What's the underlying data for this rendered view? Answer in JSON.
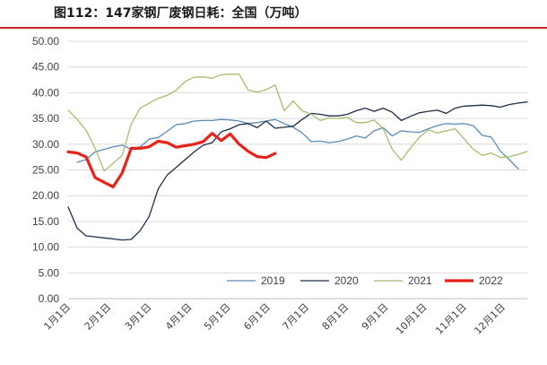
{
  "title": "图112：147家钢厂废钢日耗：全国（万吨）",
  "chart_data": {
    "type": "line",
    "title": "147家钢厂废钢日耗：全国（万吨）",
    "ylim": [
      0,
      50
    ],
    "yticks": [
      "0.00",
      "5.00",
      "10.00",
      "15.00",
      "20.00",
      "25.00",
      "30.00",
      "35.00",
      "40.00",
      "45.00",
      "50.00"
    ],
    "xlim": [
      1,
      52
    ],
    "xticks": [
      {
        "label": "1月1日",
        "week": 1
      },
      {
        "label": "2月1日",
        "week": 5.5
      },
      {
        "label": "3月1日",
        "week": 10
      },
      {
        "label": "4月1日",
        "week": 14.5
      },
      {
        "label": "5月1日",
        "week": 18.8
      },
      {
        "label": "6月1日",
        "week": 23.2
      },
      {
        "label": "7月1日",
        "week": 27.5
      },
      {
        "label": "8月1日",
        "week": 31.9
      },
      {
        "label": "9月1日",
        "week": 36.3
      },
      {
        "label": "10月1日",
        "week": 40.6
      },
      {
        "label": "11月1日",
        "week": 45
      },
      {
        "label": "12月1日",
        "week": 49.3
      }
    ],
    "grid": "horizontal",
    "legend_position": "bottom-right",
    "series": [
      {
        "name": "2019",
        "color": "#5b8bb7",
        "width": 1.3,
        "start_week": 2,
        "values": [
          26.5,
          27.0,
          28.5,
          29.0,
          29.5,
          29.8,
          29.0,
          29.5,
          31.0,
          31.3,
          32.5,
          33.8,
          34.0,
          34.5,
          34.6,
          34.6,
          34.8,
          34.7,
          34.5,
          34.0,
          34.2,
          34.5,
          34.8,
          34.0,
          33.3,
          32.2,
          30.5,
          30.6,
          30.3,
          30.5,
          31.0,
          31.6,
          31.2,
          32.6,
          33.2,
          31.6,
          32.6,
          32.4,
          32.3,
          33.0,
          33.6,
          34.0,
          33.9,
          34.0,
          33.6,
          31.7,
          31.4,
          28.7,
          27.0,
          25.2
        ]
      },
      {
        "name": "2020",
        "color": "#1f2d4a",
        "width": 1.3,
        "start_week": 1,
        "values": [
          17.8,
          13.7,
          12.2,
          12.0,
          11.8,
          11.6,
          11.4,
          11.5,
          13.2,
          16.0,
          21.3,
          24.0,
          25.5,
          27.0,
          28.5,
          29.8,
          30.3,
          32.4,
          33.0,
          33.8,
          34.0,
          33.2,
          34.5,
          33.1,
          33.3,
          33.5,
          34.8,
          36.0,
          35.8,
          35.5,
          35.5,
          35.8,
          36.5,
          37.0,
          36.4,
          37.0,
          36.2,
          34.6,
          35.4,
          36.1,
          36.4,
          36.6,
          36.0,
          37.0,
          37.4,
          37.5,
          37.6,
          37.5,
          37.2,
          37.7,
          38.0,
          38.2
        ]
      },
      {
        "name": "2021",
        "color": "#a3bf6c",
        "width": 1.3,
        "start_week": 1,
        "values": [
          36.6,
          34.8,
          32.7,
          29.2,
          24.8,
          26.3,
          27.8,
          33.9,
          37.0,
          38.0,
          38.9,
          39.5,
          40.5,
          42.2,
          43.0,
          43.1,
          42.8,
          43.5,
          43.6,
          43.6,
          40.5,
          40.1,
          40.6,
          41.5,
          36.5,
          38.4,
          36.5,
          35.8,
          34.6,
          35.1,
          35.0,
          35.2,
          34.2,
          34.2,
          34.7,
          33.0,
          29.0,
          26.9,
          29.2,
          31.3,
          32.8,
          32.2,
          32.6,
          33.0,
          31.0,
          29.0,
          27.8,
          28.3,
          27.4,
          27.6,
          28.0,
          28.6
        ]
      },
      {
        "name": "2022",
        "color": "#e8221b",
        "width": 3.2,
        "start_week": 1,
        "values": [
          28.5,
          28.3,
          27.5,
          23.5,
          22.6,
          21.7,
          24.4,
          29.2,
          29.2,
          29.5,
          30.6,
          30.3,
          29.4,
          29.7,
          30.0,
          30.5,
          32.1,
          30.7,
          32.0,
          30.0,
          28.6,
          27.6,
          27.4,
          28.2
        ]
      }
    ]
  }
}
